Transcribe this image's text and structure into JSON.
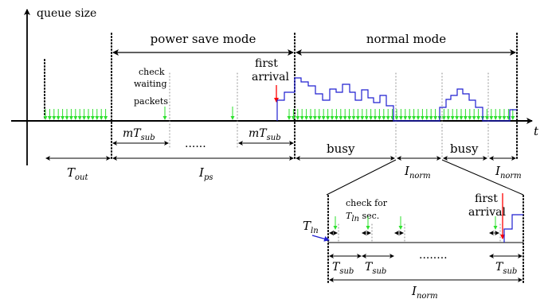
{
  "axes": {
    "y_label": "queue size",
    "x_label": "t"
  },
  "modes": {
    "power_save": "power save mode",
    "normal": "normal mode"
  },
  "labels": {
    "first_arrival_1": "first",
    "first_arrival_2": "arrival",
    "check_waiting_1": "check",
    "check_waiting_2": "waiting",
    "check_waiting_3": "packets",
    "check_for_1": "check for",
    "check_for_prefix": "T",
    "check_for_sub": "ln",
    "check_for_suffix": " sec.",
    "inset_first_1": "first",
    "inset_first_2": "arrival",
    "busy_1": "busy",
    "busy_2": "busy",
    "dots_main": "......",
    "dots_inset": "........"
  },
  "math": {
    "t_out": {
      "base": "T",
      "sub": "out"
    },
    "i_ps": {
      "base": "I",
      "sub": "ps"
    },
    "i_norm_1": {
      "base": "I",
      "sub": "norm"
    },
    "i_norm_2": {
      "base": "I",
      "sub": "norm"
    },
    "i_norm_inset": {
      "base": "I",
      "sub": "norm"
    },
    "m_t_sub_1": {
      "base": "mT",
      "sub": "sub"
    },
    "m_t_sub_2": {
      "base": "mT",
      "sub": "sub"
    },
    "t_ln": {
      "base": "T",
      "sub": "ln"
    },
    "t_sub_1": {
      "base": "T",
      "sub": "sub"
    },
    "t_sub_2": {
      "base": "T",
      "sub": "sub"
    },
    "t_sub_3": {
      "base": "T",
      "sub": "sub"
    }
  },
  "colors": {
    "arrival_marker": "#2ee02e",
    "first_arrival": "#ff0000",
    "queue_trace": "#1f1fd0"
  }
}
